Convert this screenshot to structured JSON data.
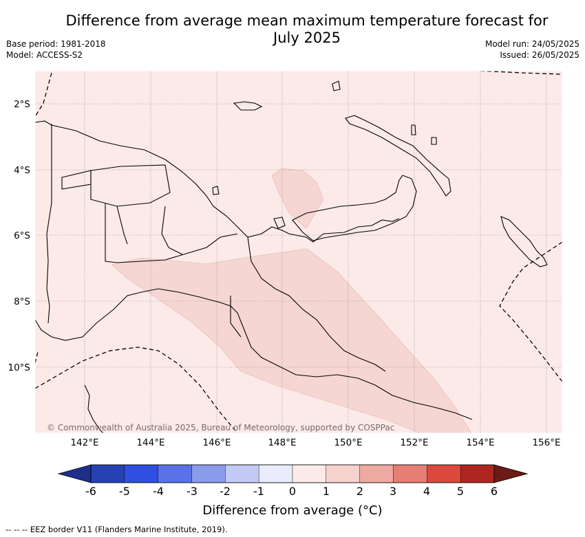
{
  "header": {
    "title_line1": "Difference from average mean maximum temperature forecast for",
    "title_line2": "July 2025",
    "base_period": "Base period: 1981-2018",
    "model": "Model: ACCESS-S2",
    "model_run": "Model run: 24/05/2025",
    "issued": "Issued: 26/05/2025"
  },
  "map": {
    "copyright": "© Commonwealth of Australia 2025, Bureau of Meteorology, supported by COSPPac",
    "lon_ticks": [
      "142°E",
      "144°E",
      "146°E",
      "148°E",
      "150°E",
      "152°E",
      "154°E",
      "156°E"
    ],
    "lat_ticks": [
      "2°S",
      "4°S",
      "6°S",
      "8°S",
      "10°S"
    ],
    "background_color": "#fbeae8",
    "anomaly_color": "#f5d6d2",
    "highlighted_anomaly_range": "1 to 2"
  },
  "colorbar": {
    "labels": [
      "-6",
      "-5",
      "-4",
      "-3",
      "-2",
      "-1",
      "0",
      "1",
      "2",
      "3",
      "4",
      "5",
      "6"
    ],
    "colors": [
      "#1d2f8a",
      "#2541b2",
      "#2e4fdf",
      "#5a72e6",
      "#8b9bec",
      "#c3caf5",
      "#e9ecfb",
      "#fbeae8",
      "#f5d2cd",
      "#eeaaa2",
      "#e67e74",
      "#da4a3c",
      "#ad2720",
      "#6e1a16"
    ],
    "title": "Difference from average (°C)"
  },
  "footnote": "-- -- -- EEZ border V11 (Flanders Marine Institute, 2019)."
}
